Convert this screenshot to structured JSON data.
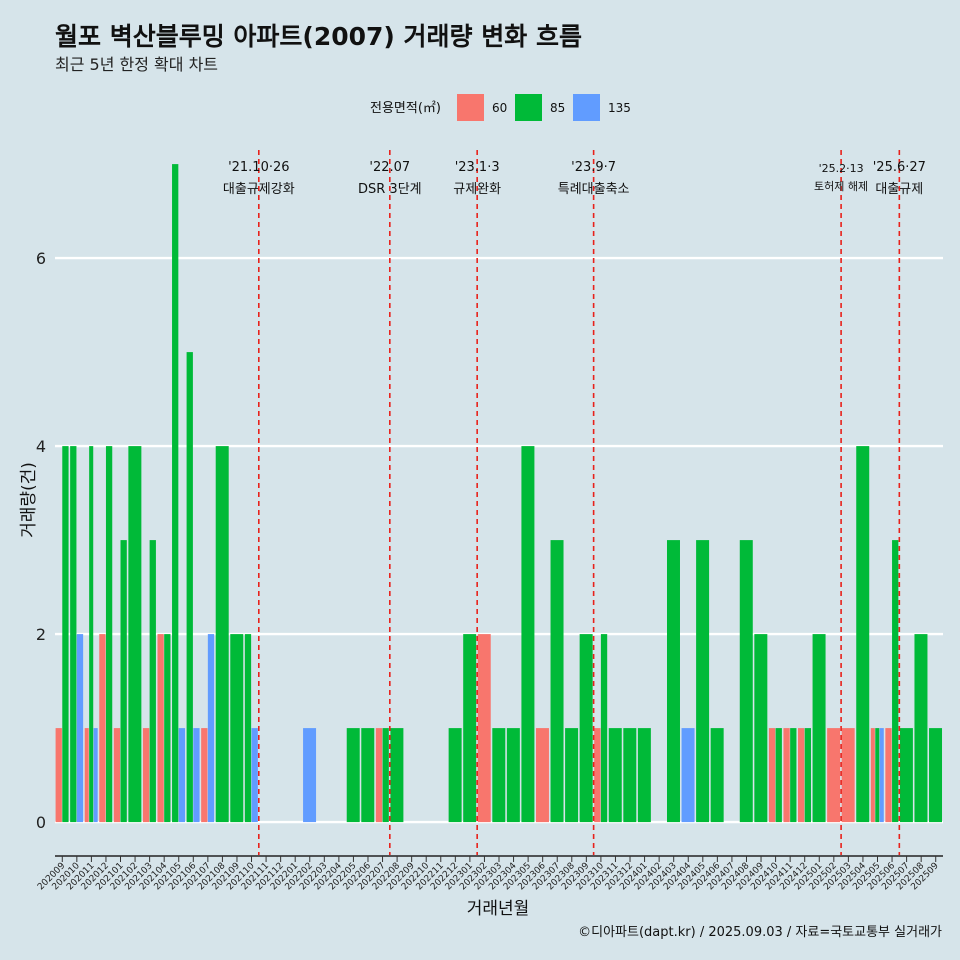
{
  "chart_data": {
    "type": "bar",
    "title": "월포 벽산블루밍 아파트(2007) 거래량 변화 흐름",
    "subtitle": "최근 5년 한정 확대 차트",
    "xlabel": "거래년월",
    "ylabel": "거래량(건)",
    "ylim": [
      -0.35,
      7.15
    ],
    "yticks": [
      0,
      2,
      4,
      6
    ],
    "caption": "©디아파트(dapt.kr) / 2025.09.03 / 자료=국토교통부 실거래가",
    "grid": true,
    "legend": {
      "title": "전용면적(㎡)",
      "position": "top"
    },
    "categories": [
      "202009",
      "202010",
      "202011",
      "202012",
      "202101",
      "202102",
      "202103",
      "202104",
      "202105",
      "202106",
      "202107",
      "202108",
      "202109",
      "202110",
      "202111",
      "202112",
      "202201",
      "202202",
      "202203",
      "202204",
      "202205",
      "202206",
      "202207",
      "202208",
      "202209",
      "202210",
      "202211",
      "202212",
      "202301",
      "202302",
      "202303",
      "202304",
      "202305",
      "202306",
      "202307",
      "202308",
      "202309",
      "202310",
      "202311",
      "202312",
      "202401",
      "202402",
      "202403",
      "202404",
      "202405",
      "202406",
      "202407",
      "202408",
      "202409",
      "202410",
      "202411",
      "202412",
      "202501",
      "202502",
      "202503",
      "202504",
      "202505",
      "202506",
      "202507",
      "202508",
      "202509"
    ],
    "series": [
      {
        "name": "60",
        "color": "#f8766d",
        "values": [
          1,
          0,
          1,
          2,
          1,
          0,
          1,
          2,
          0,
          0,
          1,
          0,
          0,
          0,
          0,
          0,
          0,
          0,
          0,
          0,
          0,
          0,
          1,
          0,
          0,
          0,
          0,
          0,
          0,
          2,
          0,
          0,
          0,
          1,
          0,
          0,
          0,
          1,
          0,
          0,
          0,
          0,
          0,
          0,
          0,
          0,
          0,
          0,
          0,
          1,
          1,
          1,
          0,
          1,
          1,
          0,
          1,
          1,
          0,
          0,
          0
        ]
      },
      {
        "name": "85",
        "color": "#00ba38",
        "values": [
          4,
          4,
          4,
          4,
          3,
          4,
          3,
          2,
          7,
          5,
          0,
          4,
          2,
          2,
          0,
          0,
          0,
          0,
          0,
          0,
          1,
          1,
          1,
          1,
          0,
          0,
          0,
          1,
          2,
          0,
          1,
          1,
          4,
          0,
          3,
          1,
          2,
          2,
          1,
          1,
          1,
          0,
          3,
          0,
          3,
          1,
          0,
          3,
          2,
          1,
          1,
          1,
          2,
          0,
          0,
          4,
          1,
          3,
          1,
          2,
          1
        ]
      },
      {
        "name": "135",
        "color": "#619cff",
        "values": [
          0,
          2,
          1,
          0,
          0,
          0,
          0,
          0,
          1,
          1,
          2,
          0,
          0,
          1,
          0,
          0,
          0,
          1,
          0,
          0,
          0,
          0,
          0,
          0,
          0,
          0,
          0,
          0,
          0,
          0,
          0,
          0,
          0,
          0,
          0,
          0,
          0,
          0,
          0,
          0,
          0,
          0,
          0,
          1,
          0,
          0,
          0,
          0,
          0,
          0,
          0,
          0,
          0,
          0,
          0,
          0,
          1,
          0,
          0,
          0,
          0
        ]
      }
    ],
    "annotations": [
      {
        "x": "202110",
        "date": "'21.10·26",
        "label": "대출규제강화"
      },
      {
        "x": "202207",
        "date": "'22.07",
        "label": "DSR 3단계"
      },
      {
        "x": "202301",
        "date": "'23.1·3",
        "label": "규제완화"
      },
      {
        "x": "202309",
        "date": "'23.9·7",
        "label": "특례대출축소"
      },
      {
        "x": "202502",
        "date": "'25.2·13",
        "label": "토허제 해제"
      },
      {
        "x": "202506",
        "date": "'25.6·27",
        "label": "대출규제"
      }
    ]
  }
}
